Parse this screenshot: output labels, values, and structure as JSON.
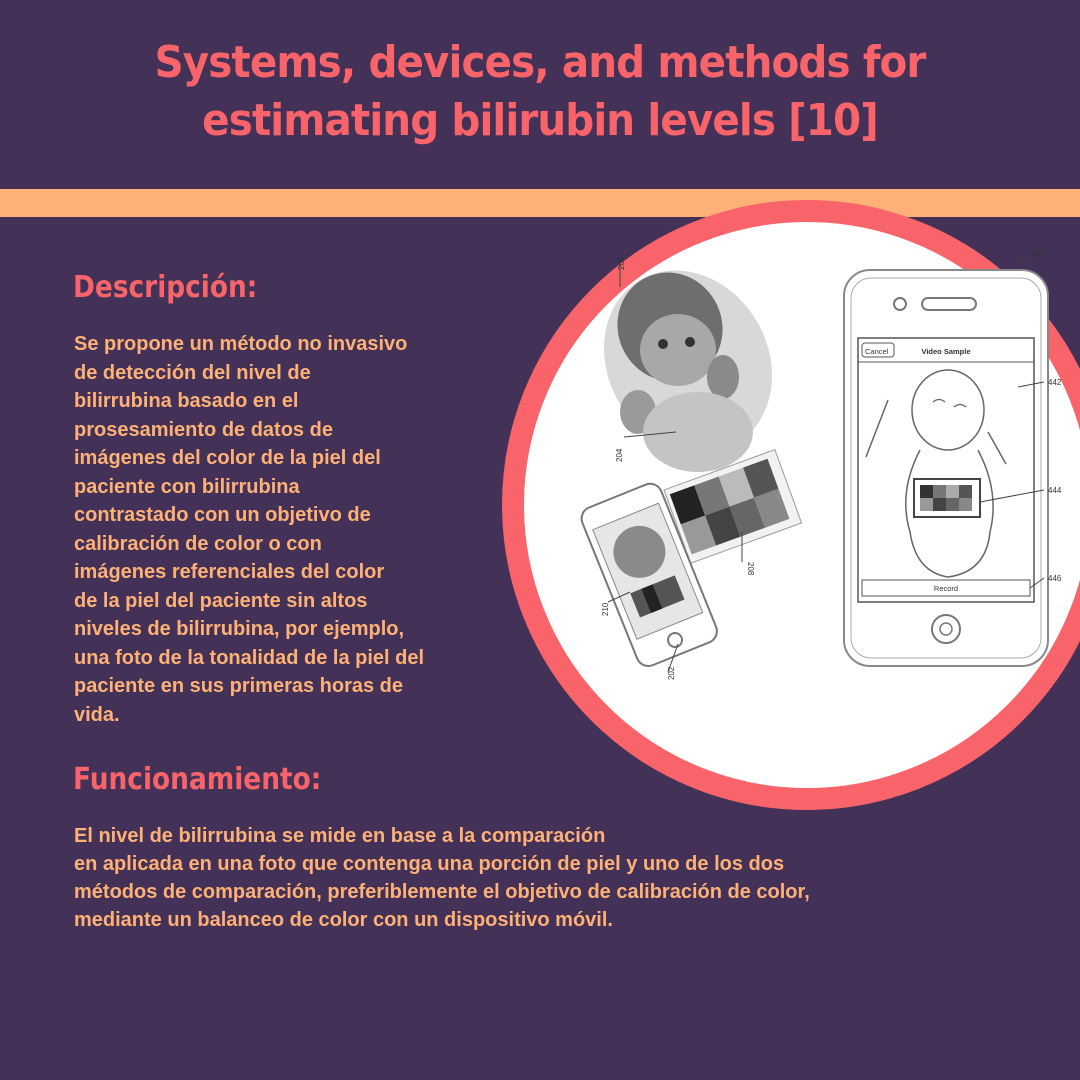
{
  "title": "Systems, devices, and methods for estimating bilirubin levels [10]",
  "colors": {
    "background": "#433157",
    "accent_coral": "#f9646a",
    "accent_peach": "#feb176",
    "circle_fill": "#ffffff"
  },
  "description": {
    "heading": "Descripción:",
    "text": "Se propone un método no invasivo\nde detección del nivel de\nbilirrubina basado en el\nprosesamiento de datos de\nimágenes del color de la piel del\npaciente con bilirrubina\ncontrastado con un objetivo de\ncalibración de color o con\nimágenes referenciales del color\nde la piel del paciente sin altos\nniveles de bilirrubina, por ejemplo,\nuna foto de la tonalidad de la piel del\npaciente en sus primeras horas de\nvida."
  },
  "functioning": {
    "heading": "Funcionamiento:",
    "text": "El nivel de bilirrubina se mide en base a la comparación\nen aplicada en una foto que contenga una porción de piel y uno de los dos\nmétodos de comparación, preferiblemente el objetivo de calibración de color,\nmediante un balanceo de color con un dispositivo móvil."
  },
  "figure": {
    "ref_labels": {
      "r206": "206",
      "r204": "204",
      "r208": "208",
      "r210": "210",
      "r202": "202",
      "r440": "440",
      "r442": "442",
      "r444": "444",
      "r446": "446"
    },
    "cancel_label": "Cancel",
    "screen_title": "Video Sample",
    "record_label": "Record"
  }
}
